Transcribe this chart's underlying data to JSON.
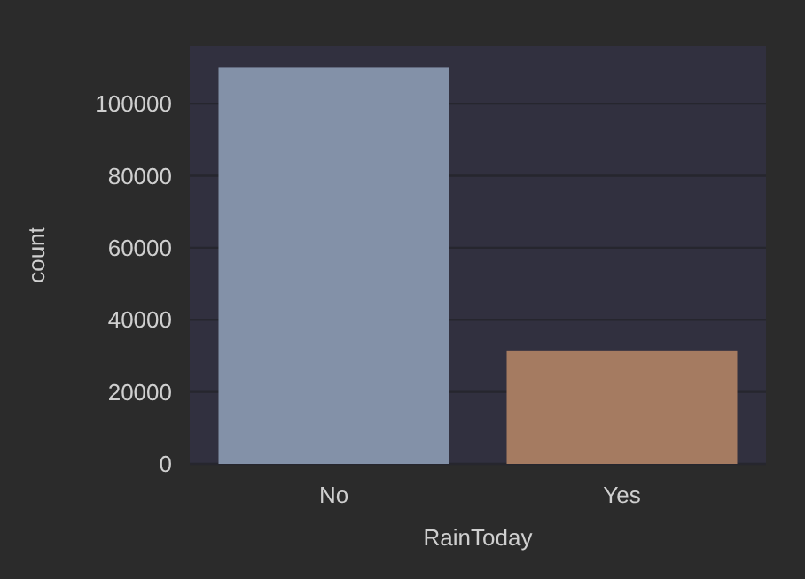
{
  "chart_data": {
    "type": "bar",
    "xlabel": "RainToday",
    "ylabel": "count",
    "categories": [
      "No",
      "Yes"
    ],
    "values": [
      110000,
      31500
    ],
    "colors": [
      "#8391a8",
      "#a57b61"
    ],
    "ylim": [
      0,
      116000
    ],
    "yticks": [
      0,
      20000,
      40000,
      60000,
      80000,
      100000
    ],
    "grid": "y"
  }
}
